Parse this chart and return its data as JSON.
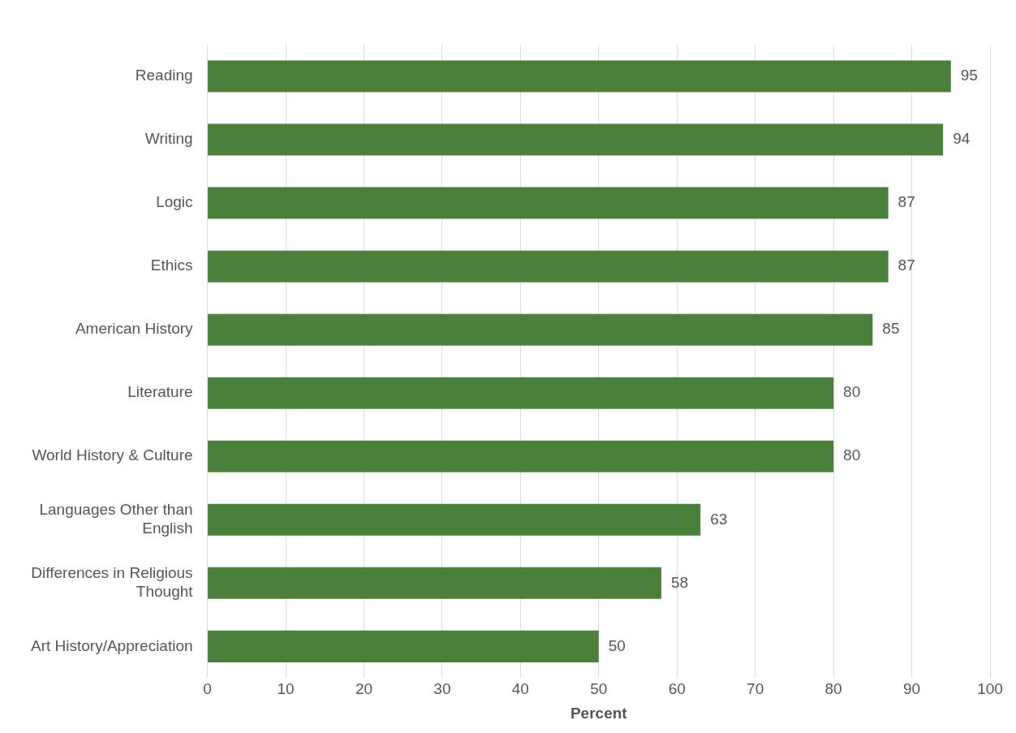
{
  "chart_data": {
    "type": "bar",
    "orientation": "horizontal",
    "xlabel": "Percent",
    "categories": [
      "Reading",
      "Writing",
      "Logic",
      "Ethics",
      "American History",
      "Literature",
      "World History & Culture",
      "Languages Other than English",
      "Differences in Religious Thought",
      "Art History/Appreciation"
    ],
    "values": [
      95,
      94,
      87,
      87,
      85,
      80,
      80,
      63,
      58,
      50
    ],
    "color": "#4a7f3c",
    "xlim": [
      0,
      100
    ],
    "xticks": [
      0,
      10,
      20,
      30,
      40,
      50,
      60,
      70,
      80,
      90,
      100
    ],
    "grid": "x",
    "legend": false,
    "data_labels": true
  }
}
